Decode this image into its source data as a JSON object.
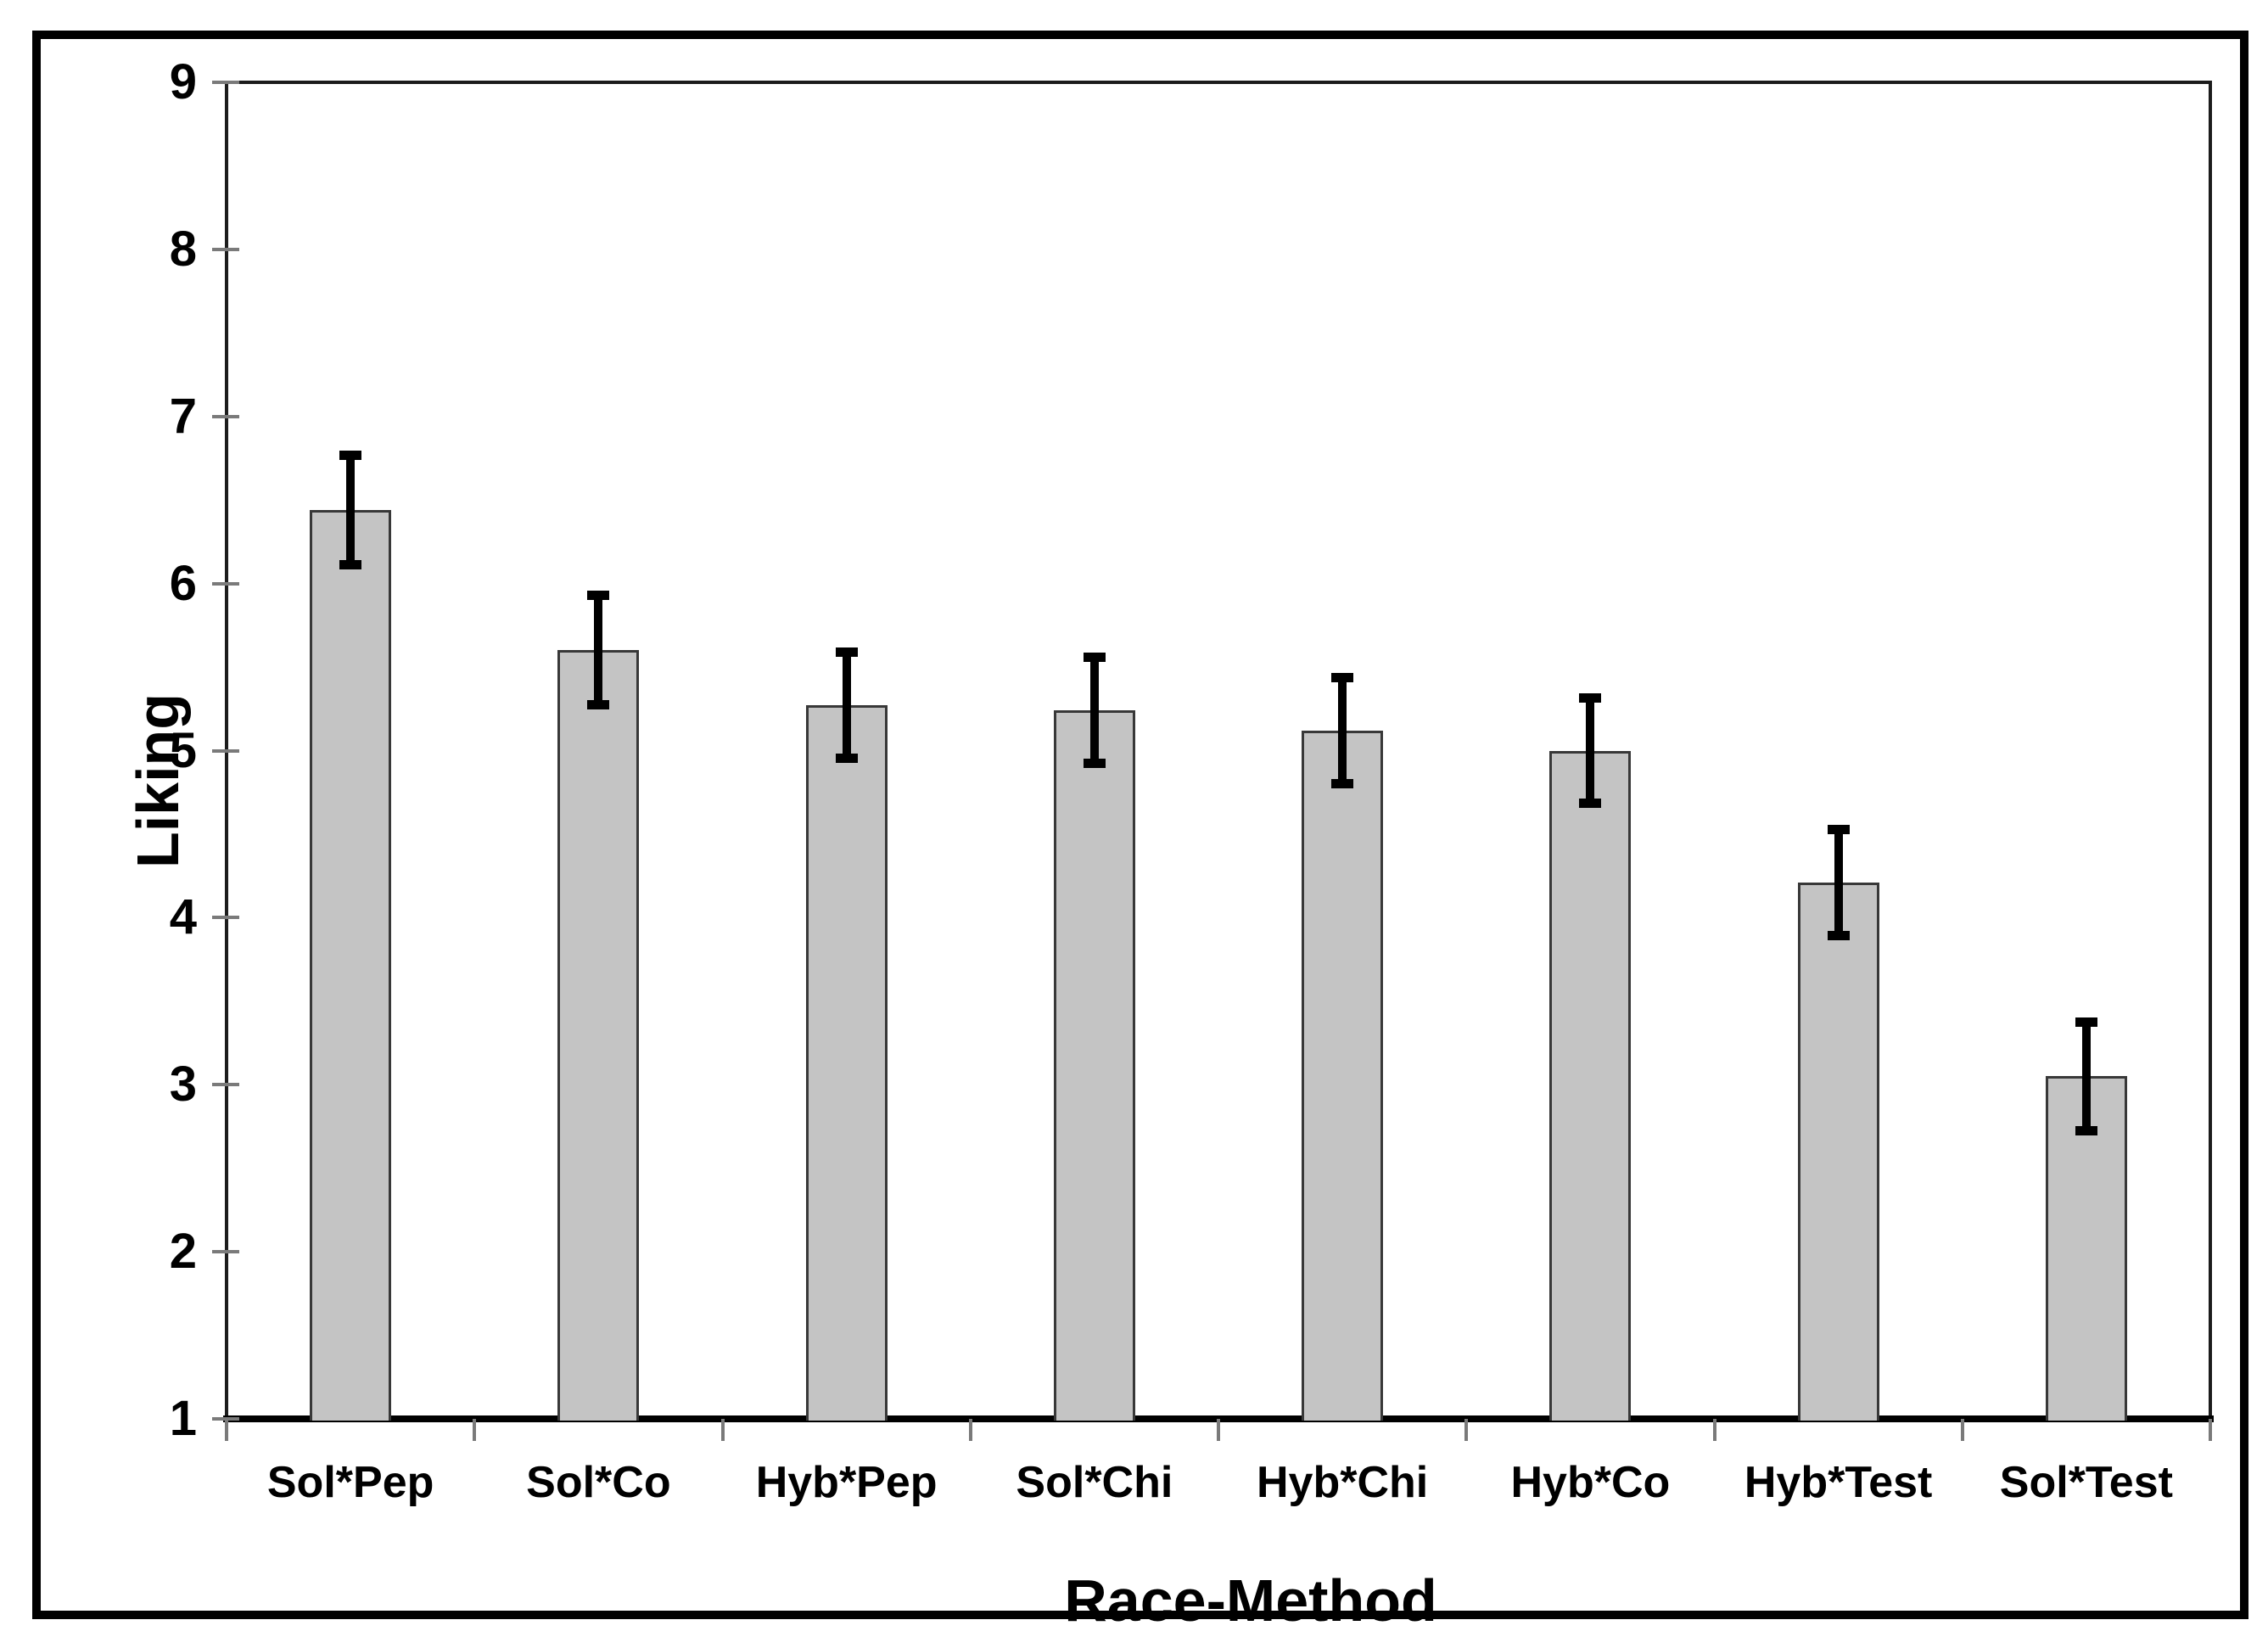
{
  "chart_data": {
    "type": "bar",
    "title": "",
    "xlabel": "Race-Method",
    "ylabel": "Liking",
    "categories": [
      "Sol*Pep",
      "Sol*Co",
      "Hyb*Pep",
      "Sol*Chi",
      "Hyb*Chi",
      "Hyb*Co",
      "Hyb*Test",
      "Sol*Test"
    ],
    "values": [
      6.44,
      5.6,
      5.27,
      5.24,
      5.12,
      5.0,
      4.21,
      3.05
    ],
    "error_bars": [
      0.35,
      0.35,
      0.34,
      0.34,
      0.34,
      0.34,
      0.34,
      0.35
    ],
    "ylim": [
      1,
      9
    ],
    "yticks": [
      1,
      2,
      3,
      4,
      5,
      6,
      7,
      8,
      9
    ],
    "grid": false,
    "legend_position": "none",
    "bar_color": "#c4c4c4",
    "bar_border_color": "#383838",
    "error_bar_color": "#000000",
    "tick_color": "#7a7a7a",
    "axis_color": "#1c1c1c",
    "frame_color": "#000000",
    "background_color": "#ffffff"
  }
}
